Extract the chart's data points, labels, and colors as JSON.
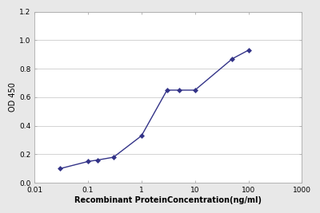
{
  "x": [
    0.03,
    0.1,
    0.15,
    0.3,
    1.0,
    3.0,
    5.0,
    10.0,
    50.0,
    100.0
  ],
  "y": [
    0.1,
    0.15,
    0.16,
    0.18,
    0.33,
    0.65,
    0.65,
    0.65,
    0.87,
    0.93
  ],
  "line_color": "#333388",
  "marker": "D",
  "marker_size": 3,
  "marker_facecolor": "#333388",
  "xlabel": "Recombinant ProteinConcentration(ng/ml)",
  "ylabel": "OD 450",
  "xlim": [
    0.01,
    1000
  ],
  "ylim": [
    0,
    1.2
  ],
  "yticks": [
    0,
    0.2,
    0.4,
    0.6,
    0.8,
    1.0,
    1.2
  ],
  "xticks": [
    0.01,
    0.1,
    1,
    10,
    100,
    1000
  ],
  "xtick_labels": [
    "0.01",
    "0.1",
    "1",
    "10",
    "100",
    "1000"
  ],
  "plot_bg_color": "#ffffff",
  "fig_bg_color": "#e8e8e8",
  "grid_color": "#cccccc",
  "axis_fontsize": 7,
  "tick_fontsize": 6.5,
  "xlabel_fontsize": 7,
  "ylabel_fontsize": 7
}
